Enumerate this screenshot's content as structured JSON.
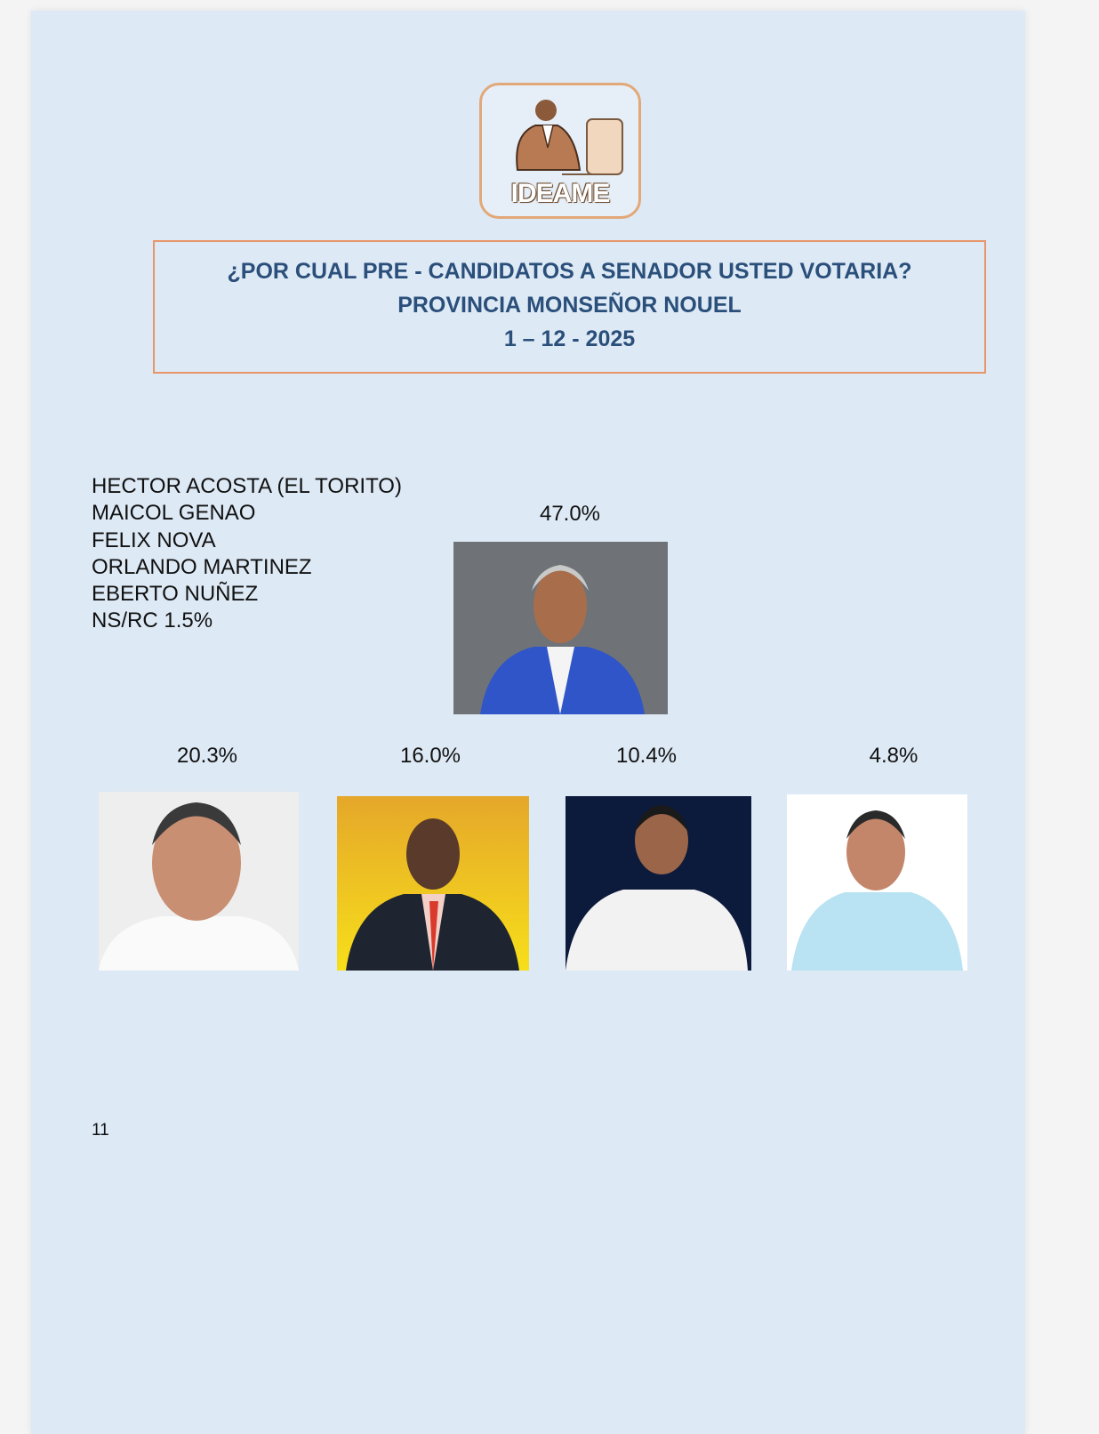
{
  "logo": {
    "text": "IDEAME",
    "icon": "person-at-computer-icon"
  },
  "title": {
    "line1": "¿POR CUAL PRE - CANDIDATOS A SENADOR USTED VOTARIA?",
    "line2": "PROVINCIA MONSEÑOR NOUEL",
    "line3": "1 – 12 - 2025"
  },
  "legend": [
    "HECTOR ACOSTA (EL TORITO)",
    "MAICOL GENAO",
    "FELIX NOVA",
    "ORLANDO MARTINEZ",
    "EBERTO NUÑEZ",
    "NS/RC 1.5%"
  ],
  "candidates": [
    {
      "percent": "47.0%",
      "photo_bg": "#6f7377"
    },
    {
      "percent": "20.3%",
      "photo_bg": "#eeeeee"
    },
    {
      "percent": "16.0%",
      "photo_bg": "#f2c21c"
    },
    {
      "percent": "10.4%",
      "photo_bg": "#0c1a3b"
    },
    {
      "percent": "4.8%",
      "photo_bg": "#ffffff"
    }
  ],
  "page_number": "11"
}
